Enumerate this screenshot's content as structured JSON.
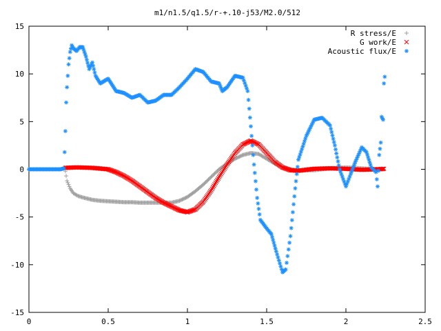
{
  "chart_data": {
    "type": "scatter",
    "title": "m1/n1.5/q1.5/r-+.10-j53/M2.0/512",
    "xlabel": "",
    "ylabel": "",
    "xlim": [
      0,
      2.5
    ],
    "ylim": [
      -15,
      15
    ],
    "x_ticks": [
      0,
      0.5,
      1,
      1.5,
      2,
      2.5
    ],
    "y_ticks": [
      -15,
      -10,
      -5,
      0,
      5,
      10,
      15
    ],
    "x_tick_labels": [
      "0",
      "0.5",
      "1",
      "1.5",
      "2",
      "2.5"
    ],
    "y_tick_labels": [
      "-15",
      "-10",
      "-5",
      "0",
      "5",
      "10",
      "15"
    ],
    "grid": false,
    "legend_position": "top-right",
    "series": [
      {
        "name": "R stress/E",
        "marker": "+",
        "color": "#a0a0a0",
        "points": [
          [
            0.23,
            -0.2
          ],
          [
            0.24,
            -1.2
          ],
          [
            0.26,
            -2.0
          ],
          [
            0.28,
            -2.5
          ],
          [
            0.31,
            -2.8
          ],
          [
            0.35,
            -3.0
          ],
          [
            0.4,
            -3.2
          ],
          [
            0.45,
            -3.3
          ],
          [
            0.5,
            -3.35
          ],
          [
            0.55,
            -3.4
          ],
          [
            0.6,
            -3.45
          ],
          [
            0.65,
            -3.45
          ],
          [
            0.7,
            -3.5
          ],
          [
            0.75,
            -3.5
          ],
          [
            0.8,
            -3.5
          ],
          [
            0.85,
            -3.5
          ],
          [
            0.9,
            -3.5
          ],
          [
            0.95,
            -3.3
          ],
          [
            1.0,
            -2.9
          ],
          [
            1.05,
            -2.3
          ],
          [
            1.1,
            -1.6
          ],
          [
            1.15,
            -0.8
          ],
          [
            1.2,
            0.0
          ],
          [
            1.25,
            0.6
          ],
          [
            1.3,
            1.1
          ],
          [
            1.35,
            1.5
          ],
          [
            1.4,
            1.7
          ],
          [
            1.45,
            1.6
          ],
          [
            1.5,
            1.1
          ],
          [
            1.55,
            0.6
          ],
          [
            1.6,
            0.2
          ],
          [
            1.65,
            0.0
          ],
          [
            1.7,
            -0.1
          ],
          [
            1.8,
            -0.1
          ],
          [
            1.9,
            0.1
          ],
          [
            2.0,
            0.2
          ],
          [
            2.1,
            0.1
          ],
          [
            2.2,
            0.0
          ],
          [
            2.24,
            0.0
          ]
        ]
      },
      {
        "name": "G work/E",
        "marker": "x",
        "color": "#ff0000",
        "points": [
          [
            0.23,
            0.15
          ],
          [
            0.3,
            0.2
          ],
          [
            0.4,
            0.15
          ],
          [
            0.5,
            0.0
          ],
          [
            0.55,
            -0.3
          ],
          [
            0.6,
            -0.7
          ],
          [
            0.65,
            -1.2
          ],
          [
            0.7,
            -1.8
          ],
          [
            0.75,
            -2.4
          ],
          [
            0.8,
            -3.0
          ],
          [
            0.85,
            -3.5
          ],
          [
            0.9,
            -3.9
          ],
          [
            0.95,
            -4.3
          ],
          [
            1.0,
            -4.5
          ],
          [
            1.05,
            -4.2
          ],
          [
            1.1,
            -3.4
          ],
          [
            1.15,
            -2.2
          ],
          [
            1.2,
            -0.8
          ],
          [
            1.25,
            0.5
          ],
          [
            1.3,
            1.7
          ],
          [
            1.35,
            2.6
          ],
          [
            1.4,
            3.0
          ],
          [
            1.45,
            2.6
          ],
          [
            1.5,
            1.7
          ],
          [
            1.55,
            0.8
          ],
          [
            1.6,
            0.2
          ],
          [
            1.65,
            -0.1
          ],
          [
            1.7,
            -0.15
          ],
          [
            1.8,
            0.05
          ],
          [
            1.9,
            0.1
          ],
          [
            2.0,
            0.05
          ],
          [
            2.1,
            -0.05
          ],
          [
            2.2,
            0.0
          ],
          [
            2.24,
            0.05
          ]
        ]
      },
      {
        "name": "Acoustic flux/E",
        "marker": "*",
        "color": "#1e90ff",
        "points": [
          [
            0.0,
            0.0
          ],
          [
            0.05,
            0.0
          ],
          [
            0.1,
            0.0
          ],
          [
            0.15,
            0.0
          ],
          [
            0.2,
            0.0
          ],
          [
            0.22,
            0.1
          ],
          [
            0.225,
            1.8
          ],
          [
            0.23,
            4.0
          ],
          [
            0.235,
            7.0
          ],
          [
            0.24,
            8.6
          ],
          [
            0.245,
            9.8
          ],
          [
            0.25,
            11.0
          ],
          [
            0.26,
            12.3
          ],
          [
            0.27,
            13.0
          ],
          [
            0.28,
            12.7
          ],
          [
            0.3,
            12.4
          ],
          [
            0.32,
            12.8
          ],
          [
            0.34,
            12.8
          ],
          [
            0.36,
            11.8
          ],
          [
            0.38,
            10.5
          ],
          [
            0.4,
            11.2
          ],
          [
            0.42,
            9.8
          ],
          [
            0.45,
            9.0
          ],
          [
            0.5,
            9.5
          ],
          [
            0.55,
            8.2
          ],
          [
            0.6,
            8.0
          ],
          [
            0.65,
            7.5
          ],
          [
            0.7,
            7.8
          ],
          [
            0.75,
            7.0
          ],
          [
            0.8,
            7.2
          ],
          [
            0.85,
            7.8
          ],
          [
            0.9,
            7.8
          ],
          [
            0.95,
            8.6
          ],
          [
            1.0,
            9.5
          ],
          [
            1.05,
            10.5
          ],
          [
            1.1,
            10.2
          ],
          [
            1.15,
            9.2
          ],
          [
            1.2,
            9.0
          ],
          [
            1.22,
            8.2
          ],
          [
            1.25,
            8.6
          ],
          [
            1.3,
            9.8
          ],
          [
            1.35,
            9.6
          ],
          [
            1.38,
            8.2
          ],
          [
            1.4,
            4.5
          ],
          [
            1.42,
            0.5
          ],
          [
            1.44,
            -3.0
          ],
          [
            1.46,
            -5.3
          ],
          [
            1.5,
            -6.2
          ],
          [
            1.53,
            -6.8
          ],
          [
            1.56,
            -8.6
          ],
          [
            1.6,
            -10.8
          ],
          [
            1.62,
            -10.5
          ],
          [
            1.65,
            -7.0
          ],
          [
            1.68,
            -2.0
          ],
          [
            1.7,
            1.0
          ],
          [
            1.75,
            3.5
          ],
          [
            1.8,
            5.2
          ],
          [
            1.85,
            5.4
          ],
          [
            1.9,
            4.6
          ],
          [
            1.93,
            2.5
          ],
          [
            1.96,
            0.0
          ],
          [
            2.0,
            -1.8
          ],
          [
            2.03,
            -0.5
          ],
          [
            2.06,
            0.8
          ],
          [
            2.1,
            2.3
          ],
          [
            2.13,
            1.8
          ],
          [
            2.16,
            0.2
          ],
          [
            2.19,
            -0.3
          ],
          [
            2.2,
            -1.8
          ],
          [
            2.21,
            1.5
          ],
          [
            2.22,
            2.8
          ],
          [
            2.225,
            5.5
          ],
          [
            2.235,
            5.2
          ],
          [
            2.24,
            9.0
          ],
          [
            2.245,
            9.7
          ]
        ]
      }
    ]
  }
}
